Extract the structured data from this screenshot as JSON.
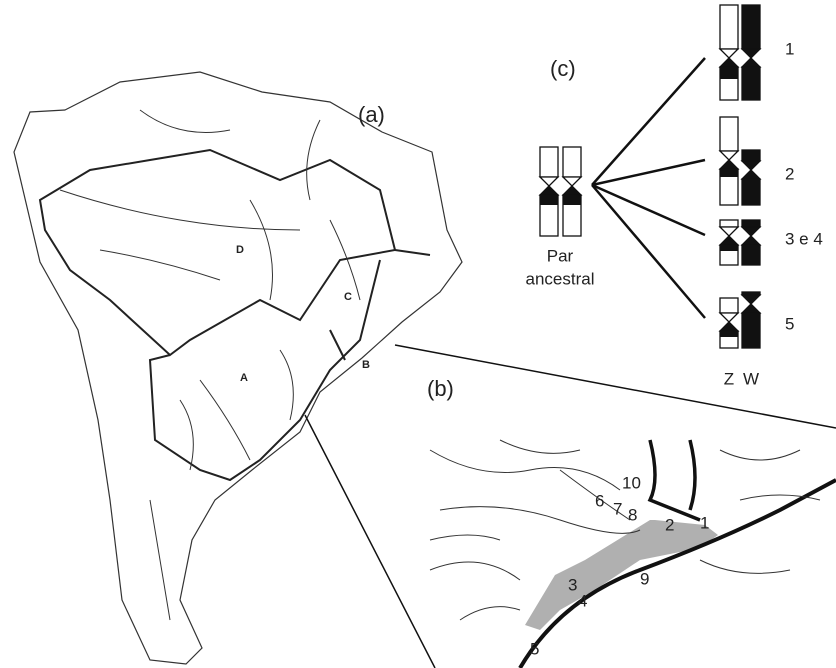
{
  "panel_a": {
    "label": "(a)",
    "regions": [
      "D",
      "C",
      "A",
      "B"
    ]
  },
  "panel_b": {
    "label": "(b)",
    "sites": [
      "10",
      "6",
      "7",
      "8",
      "2",
      "1",
      "3",
      "4",
      "9",
      "5"
    ]
  },
  "panel_c": {
    "label": "(c)",
    "ancestral": [
      "Par",
      "ancestral"
    ],
    "variants": [
      "1",
      "2",
      "3 e 4",
      "5"
    ],
    "sex_labels": [
      "Z",
      "W"
    ]
  }
}
